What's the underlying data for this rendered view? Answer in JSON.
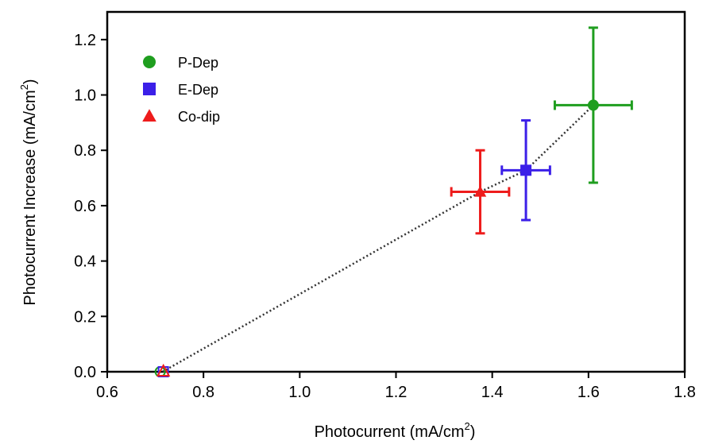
{
  "chart_data": {
    "type": "scatter",
    "title": "",
    "xlabel": "Photocurrent (mA/cm²)",
    "xlabel_main": "Photocurrent (mA/cm",
    "xlabel_sup": "2",
    "xlabel_end": ")",
    "ylabel": "Photocurrent Increase (mA/cm²)",
    "ylabel_main": "Photocurrent Increase (mA/cm",
    "ylabel_sup": "2",
    "ylabel_end": ")",
    "xlim": [
      0.6,
      1.8
    ],
    "ylim": [
      0.0,
      1.3
    ],
    "xticks": [
      0.6,
      0.8,
      1.0,
      1.2,
      1.4,
      1.6,
      1.8
    ],
    "xtick_labels": [
      "0.6",
      "0.8",
      "1.0",
      "1.2",
      "1.4",
      "1.6",
      "1.8"
    ],
    "yticks": [
      0.0,
      0.2,
      0.4,
      0.6,
      0.8,
      1.0,
      1.2
    ],
    "ytick_labels": [
      "0.0",
      "0.2",
      "0.4",
      "0.6",
      "0.8",
      "1.0",
      "1.2"
    ],
    "grid": false,
    "legend_position": "top-left",
    "origin_point": {
      "x": 0.715,
      "y": 0.0
    },
    "series": [
      {
        "name": "P-Dep",
        "marker": "circle",
        "color": "#1f9e1f",
        "x": 1.61,
        "y": 0.963,
        "xerr": 0.08,
        "yerr": 0.28
      },
      {
        "name": "E-Dep",
        "marker": "square",
        "color": "#3b1fe8",
        "x": 1.47,
        "y": 0.728,
        "xerr": 0.05,
        "yerr": 0.18
      },
      {
        "name": "Co-dip",
        "marker": "triangle",
        "color": "#ee1c1c",
        "x": 1.375,
        "y": 0.65,
        "xerr": 0.06,
        "yerr": 0.15
      }
    ],
    "trend_line": {
      "color": "#333333",
      "style": "dotted"
    }
  }
}
